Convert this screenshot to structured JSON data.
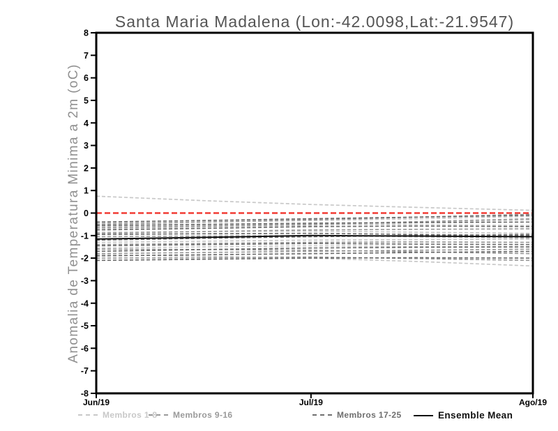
{
  "page": {
    "background": "#ffffff"
  },
  "chart_data": {
    "type": "line",
    "title": "Santa Maria Madalena (Lon:-42.0098,Lat:-21.9547)",
    "ylabel": "Anomalia de Temperatura Minima a 2m (oC)",
    "xlabel": "",
    "ylim": [
      -8,
      8
    ],
    "y_ticks": [
      8,
      7,
      6,
      5,
      4,
      3,
      2,
      1,
      0,
      -1,
      -2,
      -3,
      -4,
      -5,
      -6,
      -7,
      -8
    ],
    "x_range_days": [
      0,
      61
    ],
    "x_ticks": [
      {
        "label": "Jun/19",
        "day": 0
      },
      {
        "label": "Jul/19",
        "day": 30
      },
      {
        "label": "Ago/19",
        "day": 61
      }
    ],
    "x_days": [
      0,
      15,
      30,
      45,
      61
    ],
    "grid": false,
    "legend_position": "bottom",
    "axis_color": "#000000",
    "zero_line": {
      "value": 0,
      "color": "#f23b33",
      "style": "dashed"
    },
    "groups": [
      {
        "name": "Membros 1-8",
        "color": "#c8c8c8"
      },
      {
        "name": "Membros 9-16",
        "color": "#9a9a9a"
      },
      {
        "name": "Membros 17-25",
        "color": "#6f6f6f"
      }
    ],
    "series": [
      {
        "group": "Membros 1-8",
        "color": "#c8c8c8",
        "style": "dashed",
        "values": [
          0.75,
          0.55,
          0.38,
          0.25,
          0.12
        ]
      },
      {
        "group": "Membros 1-8",
        "color": "#c8c8c8",
        "style": "dashed",
        "values": [
          -0.45,
          -0.4,
          -0.33,
          -0.25,
          -0.15
        ]
      },
      {
        "group": "Membros 1-8",
        "color": "#c8c8c8",
        "style": "dashed",
        "values": [
          -0.6,
          -0.55,
          -0.5,
          -0.52,
          -0.55
        ]
      },
      {
        "group": "Membros 1-8",
        "color": "#c8c8c8",
        "style": "dashed",
        "values": [
          -0.7,
          -0.62,
          -0.55,
          -0.42,
          -0.3
        ]
      },
      {
        "group": "Membros 1-8",
        "color": "#c8c8c8",
        "style": "dashed",
        "values": [
          -0.85,
          -0.82,
          -0.8,
          -0.85,
          -0.9
        ]
      },
      {
        "group": "Membros 1-8",
        "color": "#c8c8c8",
        "style": "dashed",
        "values": [
          -1.3,
          -1.25,
          -1.2,
          -1.18,
          -1.15
        ]
      },
      {
        "group": "Membros 1-8",
        "color": "#c8c8c8",
        "style": "dashed",
        "values": [
          -1.55,
          -1.5,
          -1.45,
          -1.48,
          -1.5
        ]
      },
      {
        "group": "Membros 1-8",
        "color": "#c8c8c8",
        "style": "dashed",
        "values": [
          -1.85,
          -1.92,
          -2.0,
          -2.15,
          -2.35
        ]
      },
      {
        "group": "Membros 9-16",
        "color": "#9a9a9a",
        "style": "dashed",
        "values": [
          -0.5,
          -0.4,
          -0.3,
          -0.18,
          -0.05
        ]
      },
      {
        "group": "Membros 9-16",
        "color": "#9a9a9a",
        "style": "dashed",
        "values": [
          -0.65,
          -0.58,
          -0.5,
          -0.38,
          -0.25
        ]
      },
      {
        "group": "Membros 9-16",
        "color": "#9a9a9a",
        "style": "dashed",
        "values": [
          -0.9,
          -0.82,
          -0.75,
          -0.72,
          -0.7
        ]
      },
      {
        "group": "Membros 9-16",
        "color": "#9a9a9a",
        "style": "dashed",
        "values": [
          -1.05,
          -1.02,
          -1.0,
          -1.05,
          -1.1
        ]
      },
      {
        "group": "Membros 9-16",
        "color": "#9a9a9a",
        "style": "dashed",
        "values": [
          -1.4,
          -1.35,
          -1.3,
          -1.28,
          -1.3
        ]
      },
      {
        "group": "Membros 9-16",
        "color": "#9a9a9a",
        "style": "dashed",
        "values": [
          -1.6,
          -1.62,
          -1.65,
          -1.72,
          -1.8
        ]
      },
      {
        "group": "Membros 9-16",
        "color": "#9a9a9a",
        "style": "dashed",
        "values": [
          -1.8,
          -1.75,
          -1.7,
          -1.65,
          -1.6
        ]
      },
      {
        "group": "Membros 9-16",
        "color": "#9a9a9a",
        "style": "dashed",
        "values": [
          -2.0,
          -1.98,
          -1.95,
          -2.02,
          -2.1
        ]
      },
      {
        "group": "Membros 17-25",
        "color": "#6f6f6f",
        "style": "dashed",
        "values": [
          -0.4,
          -0.33,
          -0.25,
          -0.18,
          -0.1
        ]
      },
      {
        "group": "Membros 17-25",
        "color": "#6f6f6f",
        "style": "dashed",
        "values": [
          -0.55,
          -0.5,
          -0.45,
          -0.42,
          -0.4
        ]
      },
      {
        "group": "Membros 17-25",
        "color": "#6f6f6f",
        "style": "dashed",
        "values": [
          -0.75,
          -0.68,
          -0.6,
          -0.58,
          -0.6
        ]
      },
      {
        "group": "Membros 17-25",
        "color": "#6f6f6f",
        "style": "dashed",
        "values": [
          -0.95,
          -0.92,
          -0.9,
          -0.95,
          -1.0
        ]
      },
      {
        "group": "Membros 17-25",
        "color": "#6f6f6f",
        "style": "dashed",
        "values": [
          -1.2,
          -1.12,
          -1.05,
          -1.0,
          -0.95
        ]
      },
      {
        "group": "Membros 17-25",
        "color": "#6f6f6f",
        "style": "dashed",
        "values": [
          -1.45,
          -1.4,
          -1.35,
          -1.38,
          -1.4
        ]
      },
      {
        "group": "Membros 17-25",
        "color": "#6f6f6f",
        "style": "dashed",
        "values": [
          -1.7,
          -1.62,
          -1.55,
          -1.52,
          -1.5
        ]
      },
      {
        "group": "Membros 17-25",
        "color": "#6f6f6f",
        "style": "dashed",
        "values": [
          -1.9,
          -1.85,
          -1.8,
          -1.75,
          -1.7
        ]
      },
      {
        "group": "Membros 17-25",
        "color": "#6f6f6f",
        "style": "dashed",
        "values": [
          -2.1,
          -2.05,
          -2.0,
          -1.98,
          -2.0
        ]
      }
    ],
    "ensemble_mean": {
      "label": "Ensemble Mean",
      "color": "#111111",
      "style": "solid",
      "values": [
        -1.15,
        -1.08,
        -1.0,
        -1.02,
        -1.05
      ]
    }
  },
  "legend": {
    "items": [
      {
        "label": "Membros 1-8",
        "color": "#c8c8c8",
        "style": "dashed"
      },
      {
        "label": "Membros 9-16",
        "color": "#9a9a9a",
        "style": "dashed"
      },
      {
        "label": "Membros 17-25",
        "color": "#6f6f6f",
        "style": "dashed"
      },
      {
        "label": "Ensemble Mean",
        "color": "#111111",
        "style": "solid"
      }
    ]
  }
}
